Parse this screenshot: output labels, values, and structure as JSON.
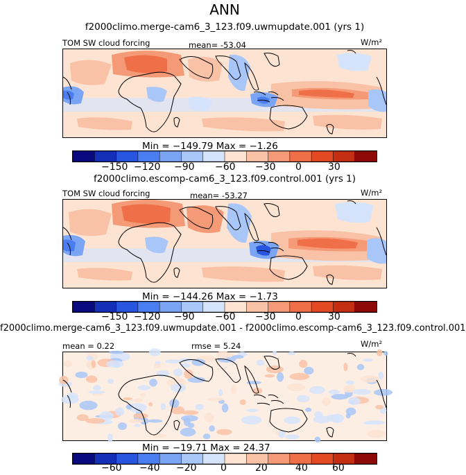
{
  "title": "ANN",
  "panels": [
    {
      "title": "f2000climo.merge-cam6_3_123.f09.uwmupdate.001 (yrs 1)",
      "left_label": "TOM SW cloud forcing",
      "center_label": "mean= -53.04",
      "units": "W/m²",
      "min_max": "Min = −149.79 Max =  −1.26",
      "colorbar_ticks": [
        "−150",
        "−120",
        "−90",
        "−60",
        "−30",
        "0",
        "30"
      ]
    },
    {
      "title": "f2000climo.escomp-cam6_3_123.f09.control.001 (yrs 1)",
      "left_label": "TOM SW cloud forcing",
      "center_label": "mean= -53.27",
      "units": "W/m²",
      "min_max": "Min = −144.26 Max =  −1.73",
      "colorbar_ticks": [
        "−150",
        "−120",
        "−90",
        "−60",
        "−30",
        "0",
        "30"
      ]
    },
    {
      "title": "f2000climo.merge-cam6_3_123.f09.uwmupdate.001 - f2000climo.escomp-cam6_3_123.f09.control.001",
      "left_label": "mean =   0.22",
      "center_label": "rmse =   5.24",
      "units": "W/m²",
      "min_max": "Min = −19.71 Max =  24.37",
      "colorbar_ticks": [
        "−60",
        "−40",
        "−20",
        "0",
        "20",
        "40",
        "60"
      ]
    }
  ],
  "chart_data": [
    {
      "type": "heatmap",
      "title": "f2000climo.merge-cam6_3_123.f09.uwmupdate.001 (yrs 1)",
      "variable": "TOM SW cloud forcing",
      "units": "W/m²",
      "mean": -53.04,
      "min": -149.79,
      "max": -1.26,
      "colorbar_ticks": [
        -150,
        -120,
        -90,
        -60,
        -30,
        0,
        30
      ]
    },
    {
      "type": "heatmap",
      "title": "f2000climo.escomp-cam6_3_123.f09.control.001 (yrs 1)",
      "variable": "TOM SW cloud forcing",
      "units": "W/m²",
      "mean": -53.27,
      "min": -144.26,
      "max": -1.73,
      "colorbar_ticks": [
        -150,
        -120,
        -90,
        -60,
        -30,
        0,
        30
      ]
    },
    {
      "type": "heatmap",
      "title": "f2000climo.merge-cam6_3_123.f09.uwmupdate.001 - f2000climo.escomp-cam6_3_123.f09.control.001",
      "mean": 0.22,
      "rmse": 5.24,
      "units": "W/m²",
      "min": -19.71,
      "max": 24.37,
      "colorbar_ticks": [
        -60,
        -40,
        -20,
        0,
        20,
        40,
        60
      ]
    }
  ],
  "colors": {
    "colorbar": [
      "#0a0a80",
      "#1530b8",
      "#2755e0",
      "#4a7ef0",
      "#7aa5f5",
      "#a8c6f8",
      "#d6e4fb",
      "#fde3d2",
      "#f9c2a6",
      "#f59a76",
      "#ef7048",
      "#e34a24",
      "#c42e12",
      "#8e0a08"
    ]
  }
}
